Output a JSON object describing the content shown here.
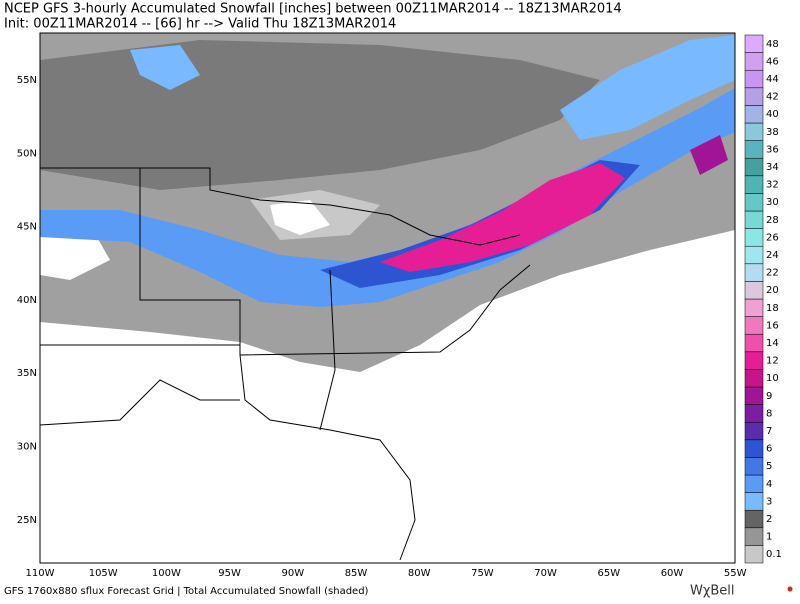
{
  "header": {
    "title": "NCEP GFS 3-hourly Accumulated Snowfall [inches] between 00Z11MAR2014 -- 18Z13MAR2014",
    "subtitle": "Init: 00Z11MAR2014 -- [66] hr --> Valid Thu 18Z13MAR2014"
  },
  "map": {
    "lat_labels": [
      "55N",
      "50N",
      "45N",
      "40N",
      "35N",
      "30N",
      "25N"
    ],
    "lon_labels": [
      "110W",
      "105W",
      "100W",
      "95W",
      "90W",
      "85W",
      "80W",
      "75W",
      "70W",
      "65W",
      "60W",
      "55W"
    ]
  },
  "colorbar": [
    {
      "label": "0.1",
      "color": "#c8c8c8"
    },
    {
      "label": "1",
      "color": "#969696"
    },
    {
      "label": "2",
      "color": "#646464"
    },
    {
      "label": "3",
      "color": "#78b9ff"
    },
    {
      "label": "4",
      "color": "#5a9cf5"
    },
    {
      "label": "5",
      "color": "#4178e6"
    },
    {
      "label": "6",
      "color": "#2d55d2"
    },
    {
      "label": "7",
      "color": "#5a2daa"
    },
    {
      "label": "8",
      "color": "#7d1ea0"
    },
    {
      "label": "9",
      "color": "#a01496"
    },
    {
      "label": "10",
      "color": "#c8148c"
    },
    {
      "label": "12",
      "color": "#e61e96"
    },
    {
      "label": "14",
      "color": "#f050aa"
    },
    {
      "label": "16",
      "color": "#f078be"
    },
    {
      "label": "18",
      "color": "#f0a0d2"
    },
    {
      "label": "20",
      "color": "#dcc8dc"
    },
    {
      "label": "22",
      "color": "#b4dcf0"
    },
    {
      "label": "24",
      "color": "#a0e6f0"
    },
    {
      "label": "26",
      "color": "#8ce6e6"
    },
    {
      "label": "28",
      "color": "#78d7d7"
    },
    {
      "label": "30",
      "color": "#64c8c8"
    },
    {
      "label": "32",
      "color": "#50b4b4"
    },
    {
      "label": "34",
      "color": "#46a0a0"
    },
    {
      "label": "36",
      "color": "#5ab4be"
    },
    {
      "label": "38",
      "color": "#8cc8dc"
    },
    {
      "label": "40",
      "color": "#a0b4e6"
    },
    {
      "label": "42",
      "color": "#b4a0e6"
    },
    {
      "label": "44",
      "color": "#c896f0"
    },
    {
      "label": "46",
      "color": "#d2a0f0"
    },
    {
      "label": "48",
      "color": "#dcaaff"
    }
  ],
  "footer": {
    "text": "GFS 1760x880 sflux Forecast Grid | Total Accumulated Snowfall (shaded)",
    "logo": "WχBell"
  }
}
